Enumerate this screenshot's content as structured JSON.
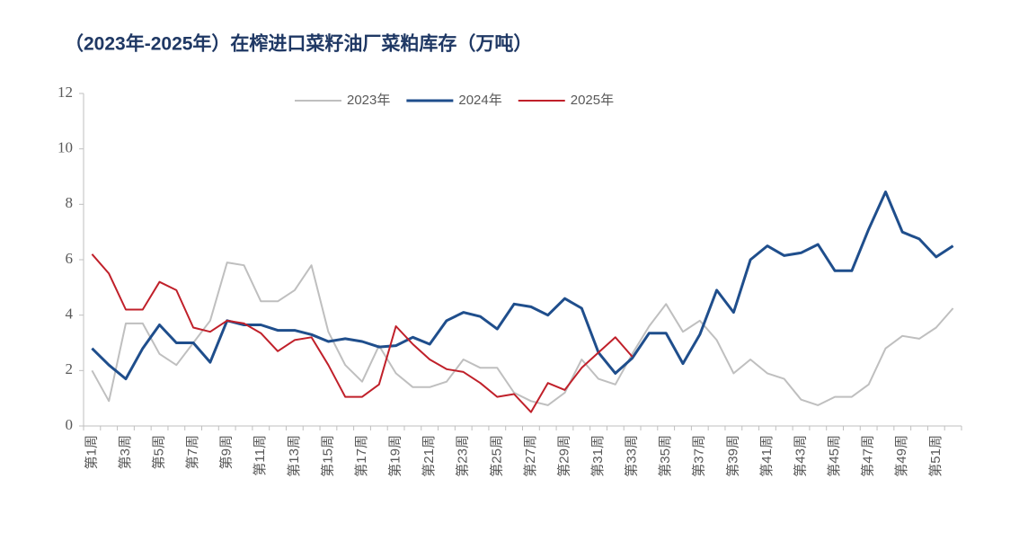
{
  "chart_data": {
    "type": "line",
    "title": "（2023年-2025年）在榨进口菜籽油厂菜粕库存（万吨）",
    "categories": [
      "第1周",
      null,
      "第3周",
      null,
      "第5周",
      null,
      "第7周",
      null,
      "第9周",
      null,
      "第11周",
      null,
      "第13周",
      null,
      "第15周",
      null,
      "第17周",
      null,
      "第19周",
      null,
      "第21周",
      null,
      "第23周",
      null,
      "第25周",
      null,
      "第27周",
      null,
      "第29周",
      null,
      "第31周",
      null,
      "第33周",
      null,
      "第35周",
      null,
      "第37周",
      null,
      "第39周",
      null,
      "第41周",
      null,
      "第43周",
      null,
      "第45周",
      null,
      "第47周",
      null,
      "第49周",
      null,
      "第51周",
      null
    ],
    "series": [
      {
        "name": "2023年",
        "color": "#bfbfbf",
        "values": [
          2.0,
          0.9,
          3.7,
          3.7,
          2.6,
          2.2,
          3.0,
          3.8,
          5.9,
          5.8,
          4.5,
          4.5,
          4.9,
          5.8,
          3.4,
          2.2,
          1.6,
          2.9,
          1.9,
          1.4,
          1.4,
          1.6,
          2.4,
          2.1,
          2.1,
          1.2,
          0.9,
          0.75,
          1.2,
          2.4,
          1.7,
          1.5,
          2.6,
          3.6,
          4.4,
          3.4,
          3.8,
          3.1,
          1.9,
          2.4,
          1.9,
          1.7,
          0.95,
          0.75,
          1.05,
          1.05,
          1.5,
          2.8,
          3.25,
          3.15,
          3.55,
          4.25
        ]
      },
      {
        "name": "2024年",
        "color": "#1f4e8c",
        "values": [
          2.8,
          2.2,
          1.7,
          2.8,
          3.65,
          3.0,
          3.0,
          2.3,
          3.8,
          3.65,
          3.65,
          3.45,
          3.45,
          3.3,
          3.05,
          3.15,
          3.05,
          2.85,
          2.9,
          3.2,
          2.95,
          3.8,
          4.1,
          3.95,
          3.5,
          4.4,
          4.3,
          4.0,
          4.6,
          4.25,
          2.65,
          1.9,
          2.45,
          3.35,
          3.35,
          2.25,
          3.3,
          4.9,
          4.1,
          6.0,
          6.5,
          6.15,
          6.25,
          6.55,
          5.6,
          5.6,
          7.1,
          8.45,
          7.0,
          6.75,
          6.1,
          6.5
        ]
      },
      {
        "name": "2025年",
        "color": "#c0202a",
        "values": [
          6.2,
          5.5,
          4.2,
          4.2,
          5.2,
          4.9,
          3.55,
          3.4,
          3.8,
          3.7,
          3.35,
          2.7,
          3.1,
          3.2,
          2.2,
          1.05,
          1.05,
          1.5,
          3.6,
          2.95,
          2.4,
          2.05,
          1.95,
          1.55,
          1.05,
          1.15,
          0.5,
          1.55,
          1.3,
          2.1,
          2.65,
          3.2,
          2.5,
          null,
          null,
          null,
          null,
          null,
          null,
          null,
          null,
          null,
          null,
          null,
          null,
          null,
          null,
          null,
          null,
          null,
          null,
          null
        ]
      }
    ],
    "ylim": [
      0,
      12
    ],
    "yticks": [
      0,
      2,
      4,
      6,
      8,
      10,
      12
    ],
    "legend": "top"
  }
}
